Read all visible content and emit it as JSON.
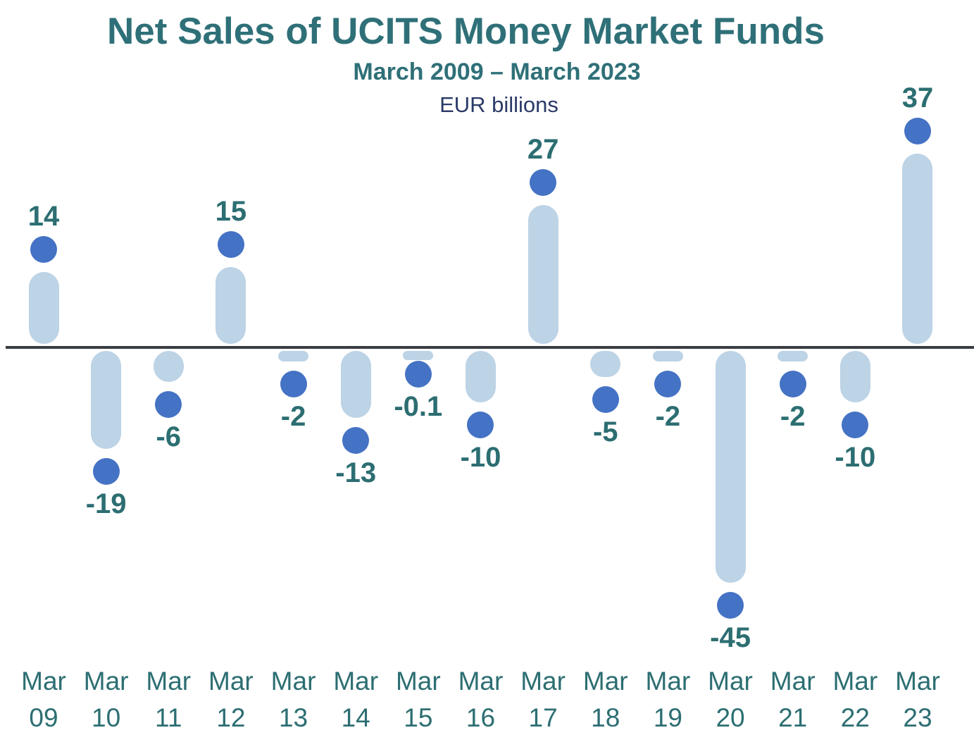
{
  "title": "Net Sales of UCITS Money Market Funds",
  "subtitle": "March 2009 – March 2023",
  "units_label": "EUR billions",
  "chart_data": {
    "type": "bar",
    "variant": "lollipop-capsule",
    "title": "Net Sales of UCITS Money Market Funds",
    "subtitle": "March 2009 – March 2023",
    "ylabel": "EUR billions",
    "xlabel": "",
    "categories": [
      "Mar 09",
      "Mar 10",
      "Mar 11",
      "Mar 12",
      "Mar 13",
      "Mar 14",
      "Mar 15",
      "Mar 16",
      "Mar 17",
      "Mar 18",
      "Mar 19",
      "Mar 20",
      "Mar 21",
      "Mar 22",
      "Mar 23"
    ],
    "values": [
      14,
      -19,
      -6,
      15,
      -2,
      -13,
      -0.1,
      -10,
      27,
      -5,
      -2,
      -45,
      -2,
      -10,
      37
    ],
    "value_labels": [
      "14",
      "-19",
      "-6",
      "15",
      "-2",
      "-13",
      "-0.1",
      "-10",
      "27",
      "-5",
      "-2",
      "-45",
      "-2",
      "-10",
      "37"
    ],
    "baseline": 0,
    "ylim": [
      -50,
      40
    ],
    "grid": false,
    "legend": false,
    "colors": {
      "dot": "#4472C4",
      "bar": "#BDD3E6",
      "value_label": "#2C6E72",
      "axis_label": "#2C6E72",
      "title": "#2F7078",
      "subtitle": "#2F7078",
      "units": "#2B3A67",
      "zero_line": "#3A3E42",
      "background": "#FFFFFF"
    }
  }
}
